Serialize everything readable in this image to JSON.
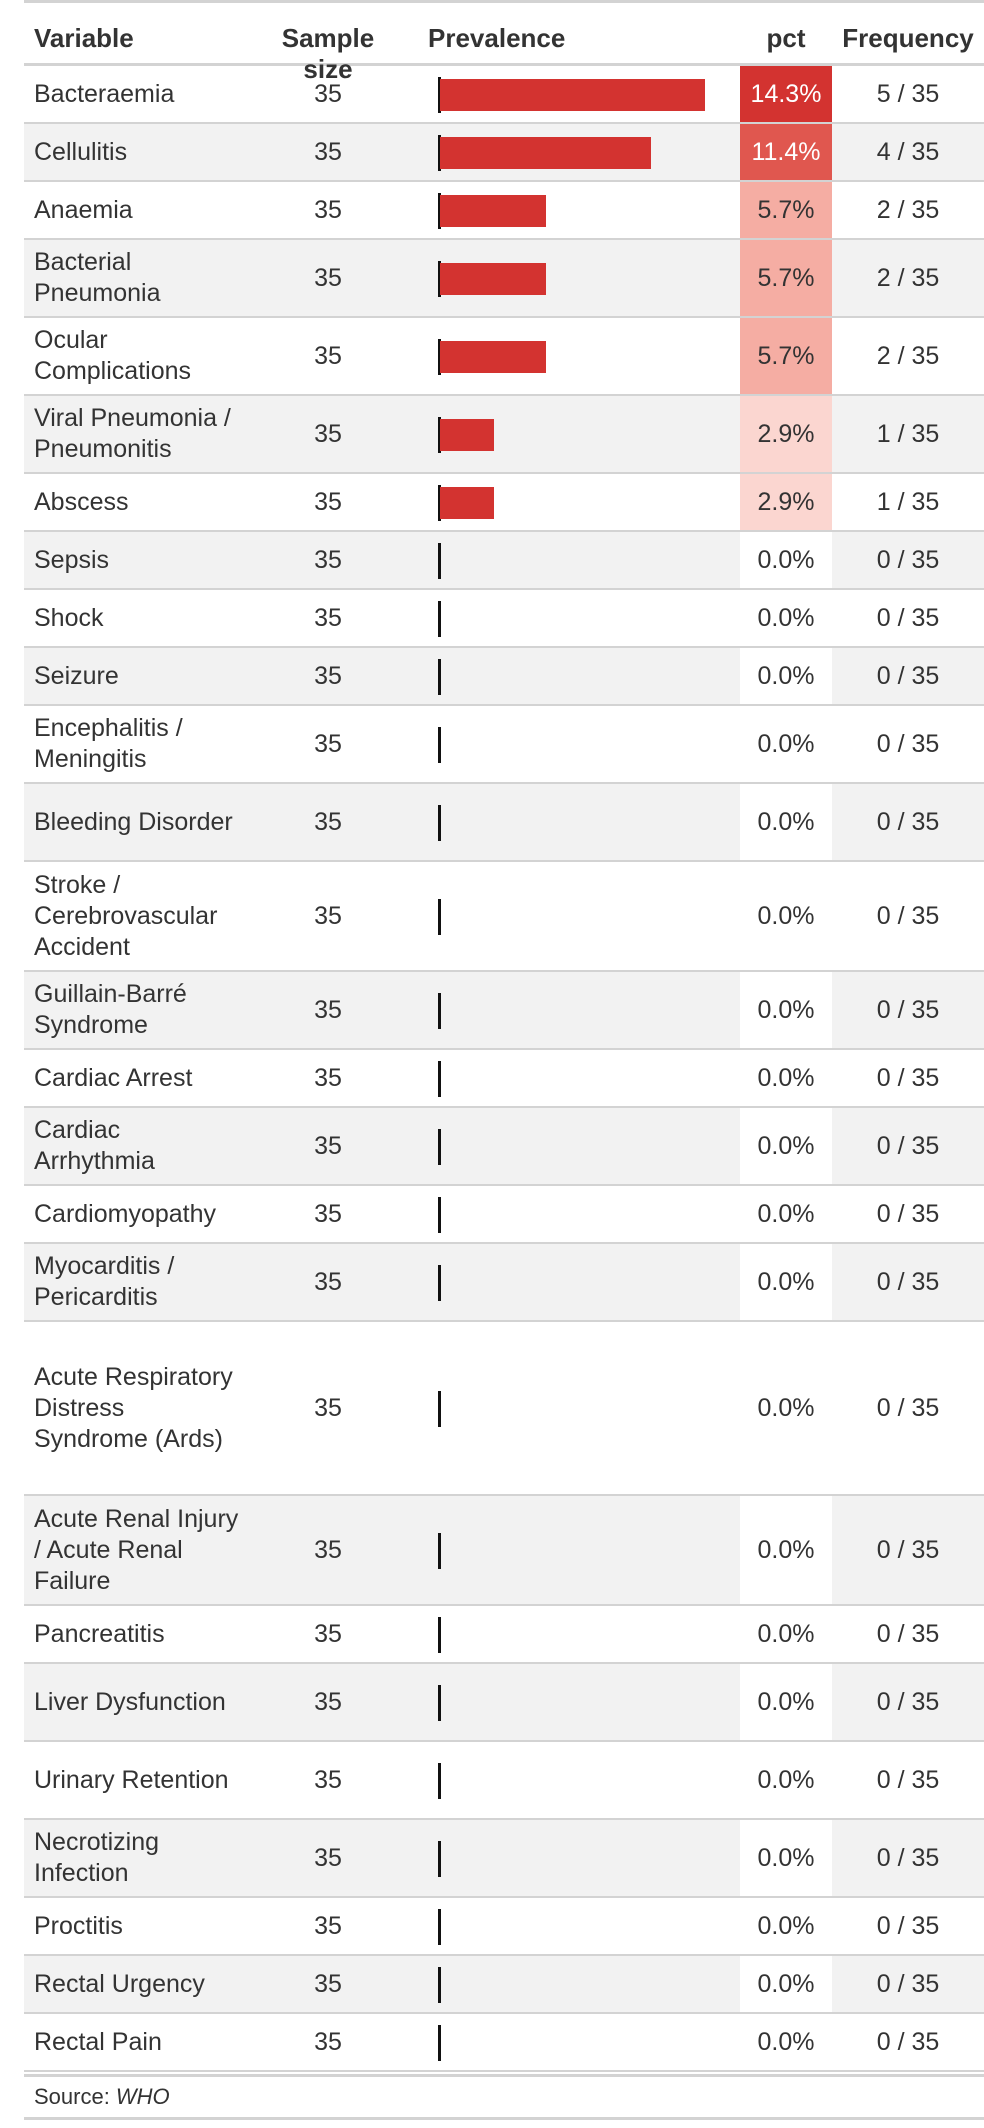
{
  "headers": {
    "variable": "Variable",
    "sample_size": "Sample size",
    "prevalence": "Prevalence",
    "pct": "pct",
    "frequency": "Frequency"
  },
  "rows": [
    {
      "variable": "Bacteraemia",
      "n": "35",
      "pct": "14.3%",
      "value": 14.3,
      "freq": "5 / 35",
      "pct_bg": "#d33330",
      "pct_fg": "#ffffff"
    },
    {
      "variable": "Cellulitis",
      "n": "35",
      "pct": "11.4%",
      "value": 11.4,
      "freq": "4 / 35",
      "pct_bg": "#e0574f",
      "pct_fg": "#ffffff"
    },
    {
      "variable": "Anaemia",
      "n": "35",
      "pct": "5.7%",
      "value": 5.7,
      "freq": "2 / 35",
      "pct_bg": "#f5ada3",
      "pct_fg": "#333333"
    },
    {
      "variable": "Bacterial Pneumonia",
      "n": "35",
      "pct": "5.7%",
      "value": 5.7,
      "freq": "2 / 35",
      "pct_bg": "#f5ada3",
      "pct_fg": "#333333"
    },
    {
      "variable": "Ocular Complications",
      "n": "35",
      "pct": "5.7%",
      "value": 5.7,
      "freq": "2 / 35",
      "pct_bg": "#f5ada3",
      "pct_fg": "#333333"
    },
    {
      "variable": "Viral Pneumonia / Pneumonitis",
      "n": "35",
      "pct": "2.9%",
      "value": 2.9,
      "freq": "1 / 35",
      "pct_bg": "#fbd6d0",
      "pct_fg": "#333333"
    },
    {
      "variable": "Abscess",
      "n": "35",
      "pct": "2.9%",
      "value": 2.9,
      "freq": "1 / 35",
      "pct_bg": "#fbd6d0",
      "pct_fg": "#333333"
    },
    {
      "variable": "Sepsis",
      "n": "35",
      "pct": "0.0%",
      "value": 0,
      "freq": "0 / 35",
      "pct_bg": "#ffffff",
      "pct_fg": "#333333"
    },
    {
      "variable": "Shock",
      "n": "35",
      "pct": "0.0%",
      "value": 0,
      "freq": "0 / 35",
      "pct_bg": "#ffffff",
      "pct_fg": "#333333"
    },
    {
      "variable": "Seizure",
      "n": "35",
      "pct": "0.0%",
      "value": 0,
      "freq": "0 / 35",
      "pct_bg": "#ffffff",
      "pct_fg": "#333333"
    },
    {
      "variable": "Encephalitis / Meningitis",
      "n": "35",
      "pct": "0.0%",
      "value": 0,
      "freq": "0 / 35",
      "pct_bg": "#ffffff",
      "pct_fg": "#333333"
    },
    {
      "variable": "Bleeding Disorder",
      "n": "35",
      "pct": "0.0%",
      "value": 0,
      "freq": "0 / 35",
      "pct_bg": "#ffffff",
      "pct_fg": "#333333"
    },
    {
      "variable": "Stroke / Cerebrovascular Accident",
      "n": "35",
      "pct": "0.0%",
      "value": 0,
      "freq": "0 / 35",
      "pct_bg": "#ffffff",
      "pct_fg": "#333333"
    },
    {
      "variable": "Guillain-Barré Syndrome",
      "n": "35",
      "pct": "0.0%",
      "value": 0,
      "freq": "0 / 35",
      "pct_bg": "#ffffff",
      "pct_fg": "#333333"
    },
    {
      "variable": "Cardiac Arrest",
      "n": "35",
      "pct": "0.0%",
      "value": 0,
      "freq": "0 / 35",
      "pct_bg": "#ffffff",
      "pct_fg": "#333333"
    },
    {
      "variable": "Cardiac Arrhythmia",
      "n": "35",
      "pct": "0.0%",
      "value": 0,
      "freq": "0 / 35",
      "pct_bg": "#ffffff",
      "pct_fg": "#333333"
    },
    {
      "variable": "Cardiomyopathy",
      "n": "35",
      "pct": "0.0%",
      "value": 0,
      "freq": "0 / 35",
      "pct_bg": "#ffffff",
      "pct_fg": "#333333"
    },
    {
      "variable": "Myocarditis / Pericarditis",
      "n": "35",
      "pct": "0.0%",
      "value": 0,
      "freq": "0 / 35",
      "pct_bg": "#ffffff",
      "pct_fg": "#333333"
    },
    {
      "variable": "Acute Respiratory Distress Syndrome (Ards)",
      "n": "35",
      "pct": "0.0%",
      "value": 0,
      "freq": "0 / 35",
      "pct_bg": "#ffffff",
      "pct_fg": "#333333"
    },
    {
      "variable": "Acute Renal Injury / Acute Renal Failure",
      "n": "35",
      "pct": "0.0%",
      "value": 0,
      "freq": "0 / 35",
      "pct_bg": "#ffffff",
      "pct_fg": "#333333"
    },
    {
      "variable": "Pancreatitis",
      "n": "35",
      "pct": "0.0%",
      "value": 0,
      "freq": "0 / 35",
      "pct_bg": "#ffffff",
      "pct_fg": "#333333"
    },
    {
      "variable": "Liver Dysfunction",
      "n": "35",
      "pct": "0.0%",
      "value": 0,
      "freq": "0 / 35",
      "pct_bg": "#ffffff",
      "pct_fg": "#333333"
    },
    {
      "variable": "Urinary Retention",
      "n": "35",
      "pct": "0.0%",
      "value": 0,
      "freq": "0 / 35",
      "pct_bg": "#ffffff",
      "pct_fg": "#333333"
    },
    {
      "variable": "Necrotizing Infection",
      "n": "35",
      "pct": "0.0%",
      "value": 0,
      "freq": "0 / 35",
      "pct_bg": "#ffffff",
      "pct_fg": "#333333"
    },
    {
      "variable": "Proctitis",
      "n": "35",
      "pct": "0.0%",
      "value": 0,
      "freq": "0 / 35",
      "pct_bg": "#ffffff",
      "pct_fg": "#333333"
    },
    {
      "variable": "Rectal Urgency",
      "n": "35",
      "pct": "0.0%",
      "value": 0,
      "freq": "0 / 35",
      "pct_bg": "#ffffff",
      "pct_fg": "#333333"
    },
    {
      "variable": "Rectal Pain",
      "n": "35",
      "pct": "0.0%",
      "value": 0,
      "freq": "0 / 35",
      "pct_bg": "#ffffff",
      "pct_fg": "#333333"
    }
  ],
  "footer": {
    "source_label": "Source:",
    "source_value": "WHO"
  },
  "colors": {
    "bar": "#d33330",
    "axis": "#111111",
    "stripe": "#f2f2f2",
    "rule": "#d3d3d3"
  },
  "chart_data": {
    "type": "bar",
    "categories": [
      "Bacteraemia",
      "Cellulitis",
      "Anaemia",
      "Bacterial Pneumonia",
      "Ocular Complications",
      "Viral Pneumonia / Pneumonitis",
      "Abscess",
      "Sepsis",
      "Shock",
      "Seizure",
      "Encephalitis / Meningitis",
      "Bleeding Disorder",
      "Stroke / Cerebrovascular Accident",
      "Guillain-Barré Syndrome",
      "Cardiac Arrest",
      "Cardiac Arrhythmia",
      "Cardiomyopathy",
      "Myocarditis / Pericarditis",
      "Acute Respiratory Distress Syndrome (Ards)",
      "Acute Renal Injury / Acute Renal Failure",
      "Pancreatitis",
      "Liver Dysfunction",
      "Urinary Retention",
      "Necrotizing Infection",
      "Proctitis",
      "Rectal Urgency",
      "Rectal Pain"
    ],
    "values": [
      14.3,
      11.4,
      5.7,
      5.7,
      5.7,
      2.9,
      2.9,
      0,
      0,
      0,
      0,
      0,
      0,
      0,
      0,
      0,
      0,
      0,
      0,
      0,
      0,
      0,
      0,
      0,
      0,
      0,
      0
    ],
    "title": "",
    "xlabel": "Prevalence",
    "ylabel": "Variable",
    "orientation": "horizontal",
    "grid": false
  }
}
